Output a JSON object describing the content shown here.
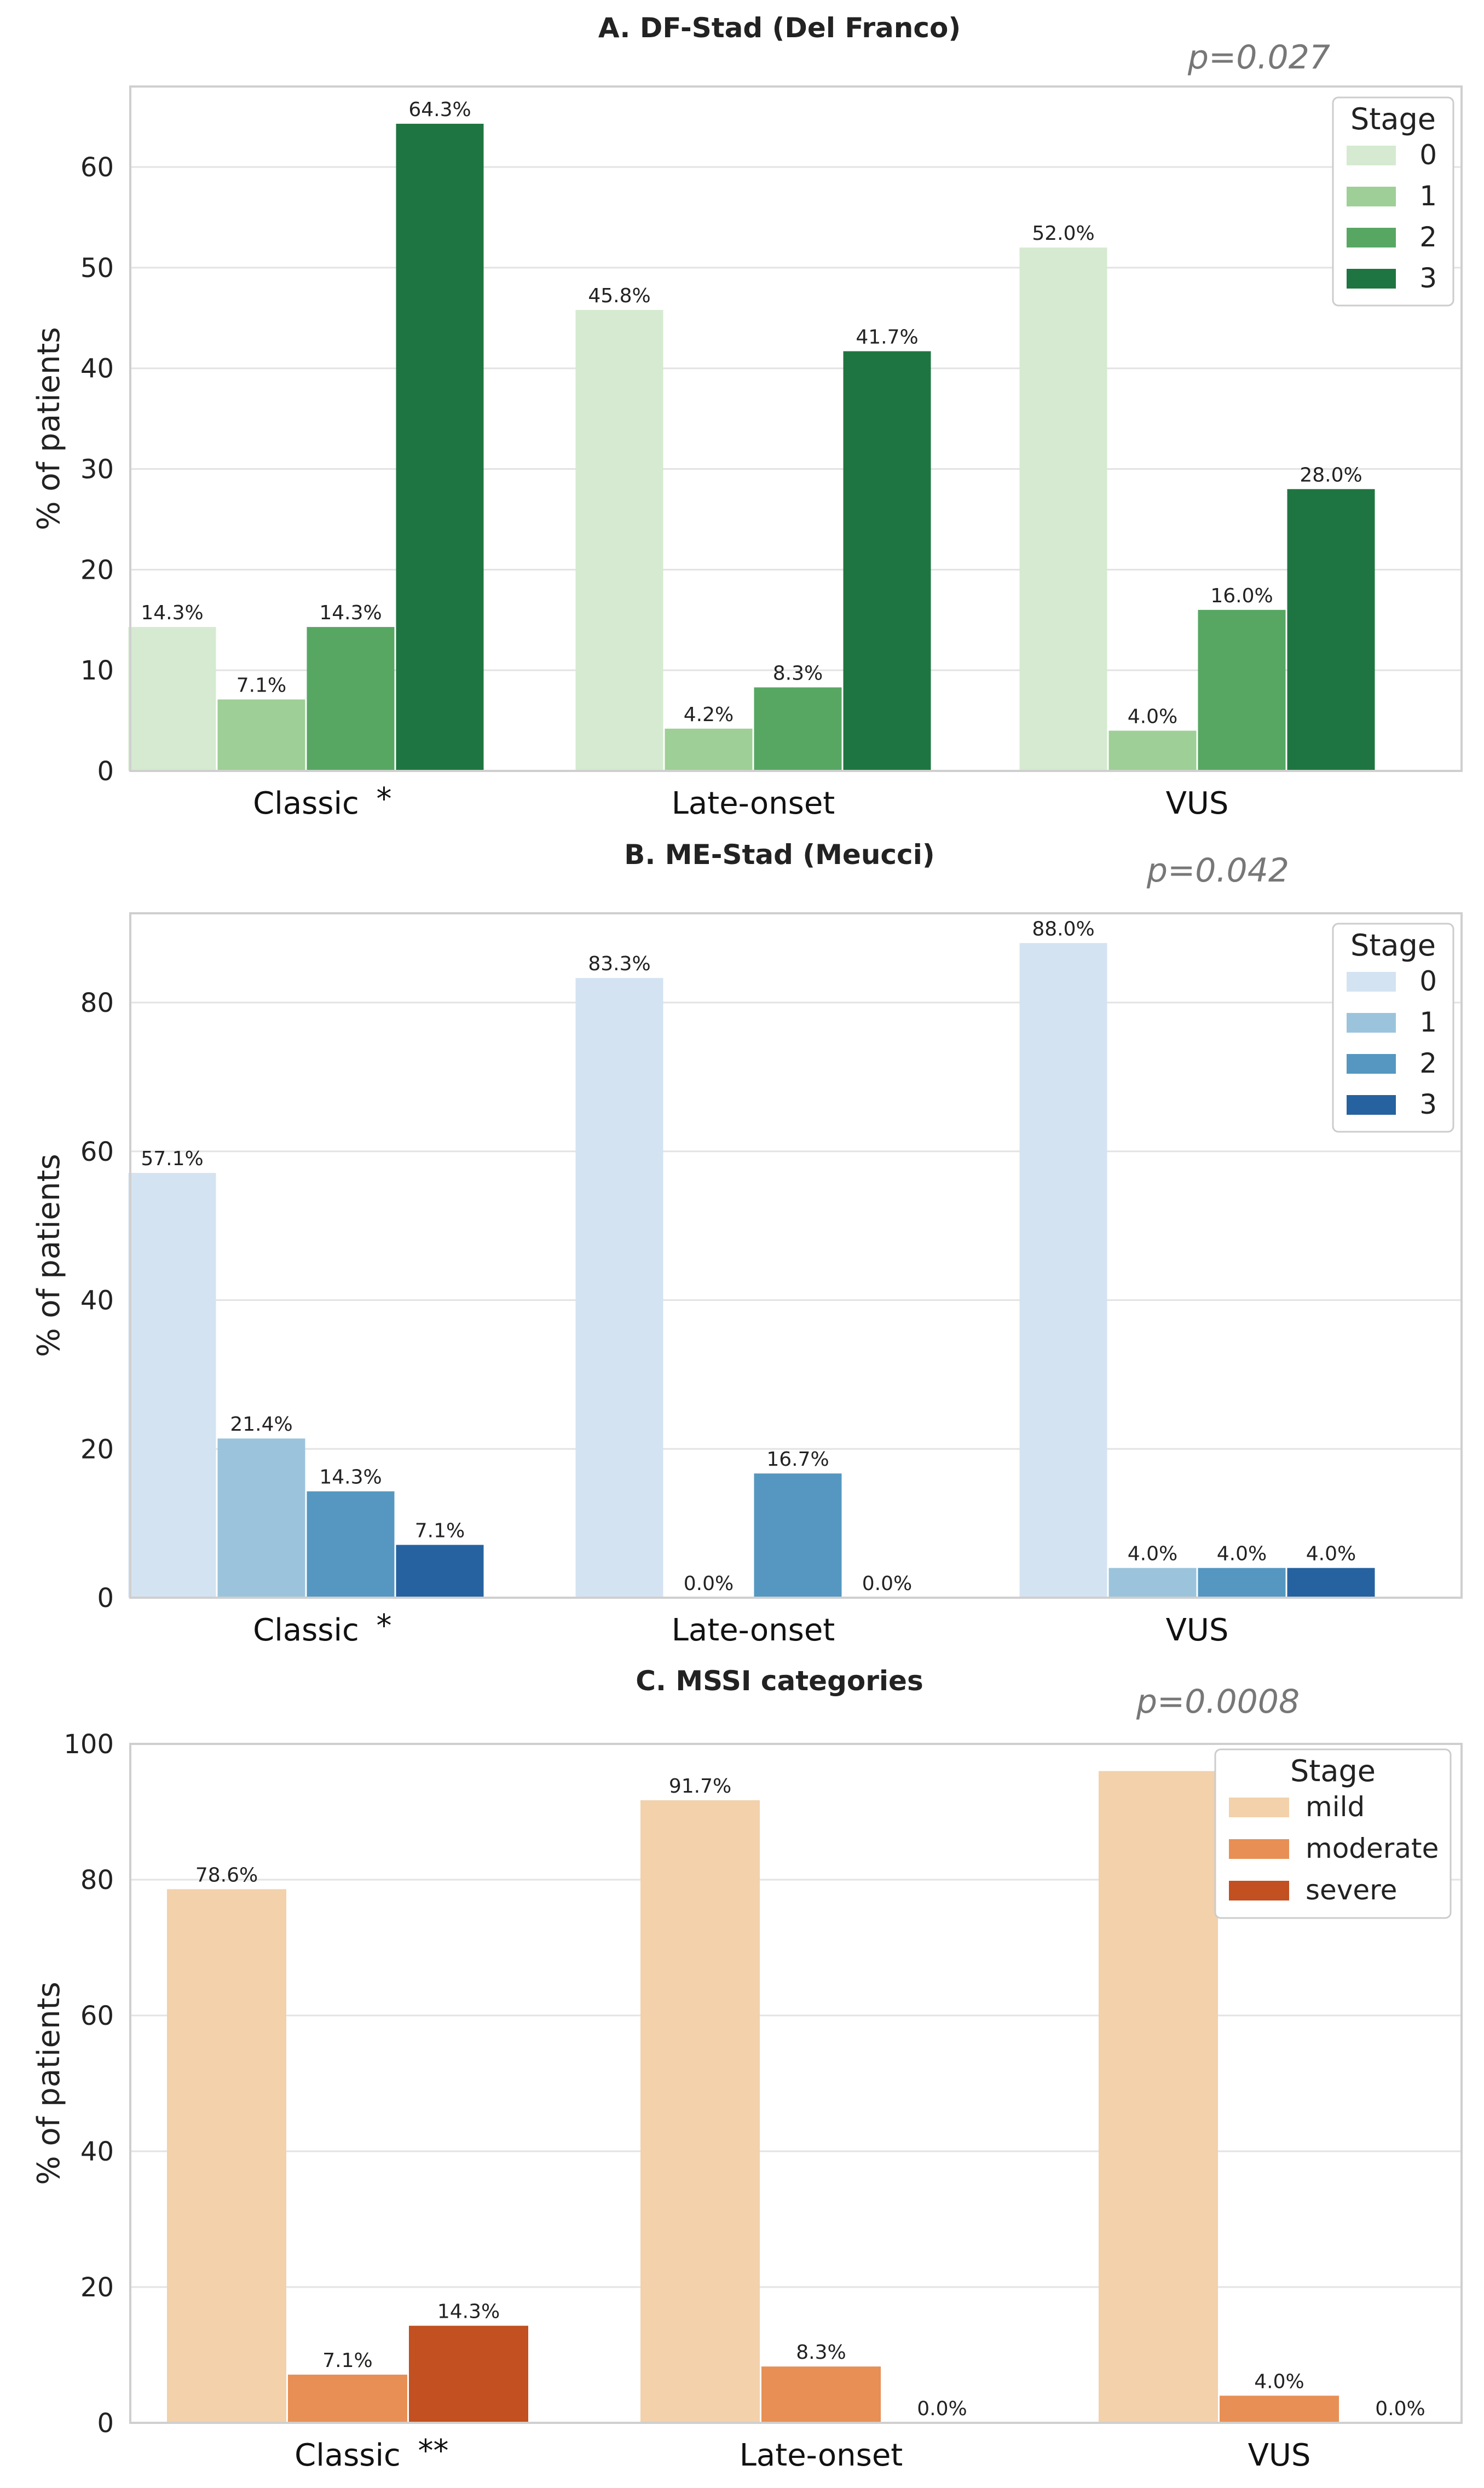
{
  "chart_data": [
    {
      "type": "bar",
      "title": "A. DF-Stad (Del Franco)",
      "annotation": "p=0.027",
      "xlabel": "",
      "ylabel": "% of patients",
      "ylim": [
        0,
        68
      ],
      "yticks": [
        0,
        10,
        20,
        30,
        40,
        50,
        60
      ],
      "categories": [
        "Classic",
        "Late-onset",
        "VUS"
      ],
      "category_markers": [
        "*",
        "",
        ""
      ],
      "legend_title": "Stage",
      "series": [
        {
          "name": "0",
          "color": "#d5ead0",
          "values": [
            14.3,
            45.8,
            52.0
          ],
          "labels": [
            "14.3%",
            "45.8%",
            "52.0%"
          ]
        },
        {
          "name": "1",
          "color": "#9ecf96",
          "values": [
            7.1,
            4.2,
            4.0
          ],
          "labels": [
            "7.1%",
            "4.2%",
            "4.0%"
          ]
        },
        {
          "name": "2",
          "color": "#57a763",
          "values": [
            14.3,
            8.3,
            16.0
          ],
          "labels": [
            "14.3%",
            "8.3%",
            "16.0%"
          ]
        },
        {
          "name": "3",
          "color": "#1f7541",
          "values": [
            64.3,
            41.7,
            28.0
          ],
          "labels": [
            "64.3%",
            "41.7%",
            "28.0%"
          ]
        }
      ]
    },
    {
      "type": "bar",
      "title": "B. ME-Stad (Meucci)",
      "annotation": "p=0.042",
      "xlabel": "",
      "ylabel": "% of patients",
      "ylim": [
        0,
        92
      ],
      "yticks": [
        0,
        20,
        40,
        60,
        80
      ],
      "categories": [
        "Classic",
        "Late-onset",
        "VUS"
      ],
      "category_markers": [
        "*",
        "",
        ""
      ],
      "legend_title": "Stage",
      "series": [
        {
          "name": "0",
          "color": "#d4e3f1",
          "values": [
            57.1,
            83.3,
            88.0
          ],
          "labels": [
            "57.1%",
            "83.3%",
            "88.0%"
          ]
        },
        {
          "name": "1",
          "color": "#9bc4dc",
          "values": [
            21.4,
            0.0,
            4.0
          ],
          "labels": [
            "21.4%",
            "0.0%",
            "4.0%"
          ]
        },
        {
          "name": "2",
          "color": "#5597c1",
          "values": [
            14.3,
            16.7,
            4.0
          ],
          "labels": [
            "14.3%",
            "16.7%",
            "4.0%"
          ]
        },
        {
          "name": "3",
          "color": "#2662a0",
          "values": [
            7.1,
            0.0,
            4.0
          ],
          "labels": [
            "7.1%",
            "0.0%",
            "4.0%"
          ]
        }
      ]
    },
    {
      "type": "bar",
      "title": "C. MSSI categories",
      "annotation": "p=0.0008",
      "xlabel": "",
      "ylabel": "% of patients",
      "ylim": [
        0,
        100
      ],
      "yticks": [
        0,
        20,
        40,
        60,
        80,
        100
      ],
      "categories": [
        "Classic",
        "Late-onset",
        "VUS"
      ],
      "category_markers": [
        "**",
        "",
        ""
      ],
      "legend_title": "Stage",
      "series": [
        {
          "name": "mild",
          "color": "#f2d1ab",
          "values": [
            78.6,
            91.7,
            96.0
          ],
          "labels": [
            "78.6%",
            "91.7%",
            ""
          ]
        },
        {
          "name": "moderate",
          "color": "#e88f55",
          "values": [
            7.1,
            8.3,
            4.0
          ],
          "labels": [
            "7.1%",
            "8.3%",
            "4.0%"
          ]
        },
        {
          "name": "severe",
          "color": "#c25020",
          "values": [
            14.3,
            0.0,
            0.0
          ],
          "labels": [
            "14.3%",
            "0.0%",
            "0.0%"
          ]
        }
      ]
    }
  ]
}
